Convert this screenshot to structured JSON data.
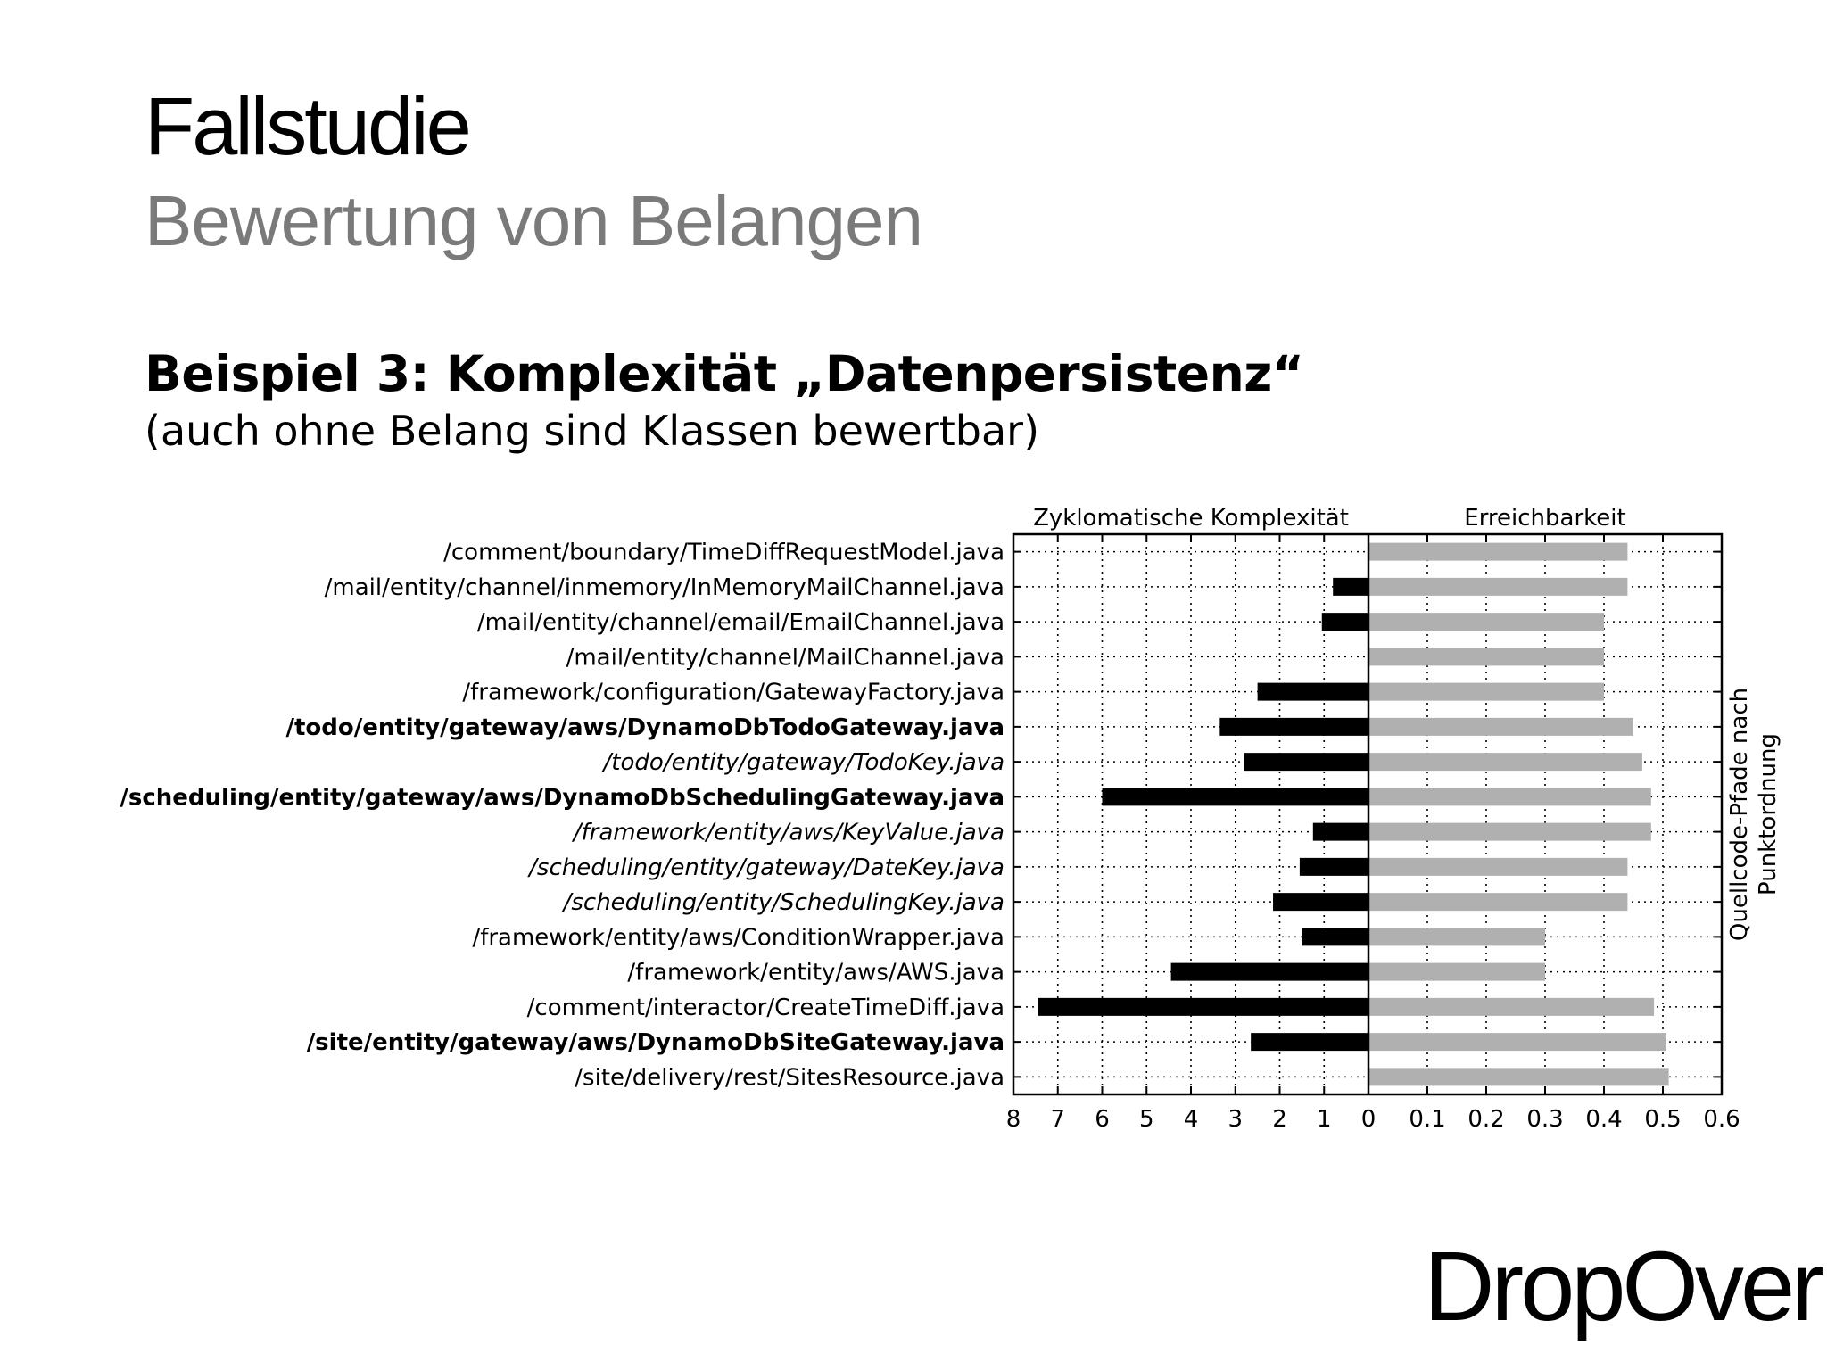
{
  "slide": {
    "title": "Fallstudie",
    "subtitle": "Bewertung von Belangen",
    "heading": "Beispiel 3: Komplexität „Datenpersistenz“",
    "subheading": "(auch ohne Belang sind Klassen bewertbar)",
    "logo": "DropOver"
  },
  "chart_data": {
    "type": "bar",
    "orientation": "horizontal",
    "categories": [
      "/comment/boundary/TimeDiffRequestModel.java",
      "/mail/entity/channel/inmemory/InMemoryMailChannel.java",
      "/mail/entity/channel/email/EmailChannel.java",
      "/mail/entity/channel/MailChannel.java",
      "/framework/configuration/GatewayFactory.java",
      "/todo/entity/gateway/aws/DynamoDbTodoGateway.java",
      "/todo/entity/gateway/TodoKey.java",
      "/scheduling/entity/gateway/aws/DynamoDbSchedulingGateway.java",
      "/framework/entity/aws/KeyValue.java",
      "/scheduling/entity/gateway/DateKey.java",
      "/scheduling/entity/SchedulingKey.java",
      "/framework/entity/aws/ConditionWrapper.java",
      "/framework/entity/aws/AWS.java",
      "/comment/interactor/CreateTimeDiff.java",
      "/site/entity/gateway/aws/DynamoDbSiteGateway.java",
      "/site/delivery/rest/SitesResource.java"
    ],
    "category_style": [
      "normal",
      "normal",
      "normal",
      "normal",
      "normal",
      "bold",
      "italic",
      "bold",
      "italic",
      "italic",
      "italic",
      "normal",
      "normal",
      "normal",
      "bold",
      "normal"
    ],
    "series": [
      {
        "name": "Zyklomatische Komplexität",
        "color": "#000000",
        "values": [
          0,
          0.8,
          1.05,
          0,
          2.5,
          3.35,
          2.8,
          6,
          1.25,
          1.55,
          2.15,
          1.5,
          4.45,
          7.45,
          2.65,
          0
        ],
        "xlim": [
          8,
          0
        ],
        "ticks": [
          "8",
          "7",
          "6",
          "5",
          "4",
          "3",
          "2",
          "1",
          "0"
        ]
      },
      {
        "name": "Erreichbarkeit",
        "color": "#b0b0b0",
        "values": [
          0.44,
          0.44,
          0.4,
          0.4,
          0.4,
          0.45,
          0.465,
          0.48,
          0.48,
          0.44,
          0.44,
          0.3,
          0.3,
          0.485,
          0.505,
          0.51
        ],
        "xlim": [
          0,
          0.6
        ],
        "ticks": [
          "0",
          "0.1",
          "0.2",
          "0.3",
          "0.4",
          "0.5",
          "0.6"
        ]
      }
    ],
    "ylabel": "Quellcode-Pfade nach Punktordnung",
    "grid": true
  }
}
